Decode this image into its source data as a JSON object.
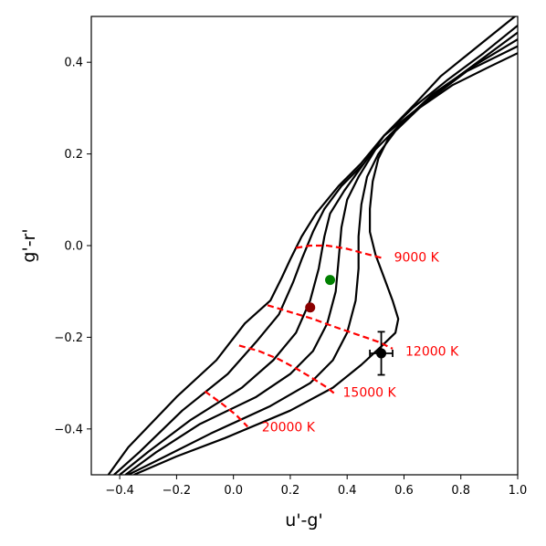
{
  "chart_data": {
    "type": "line",
    "xlabel": "u'-g'",
    "ylabel": "g'-r'",
    "xlim": [
      -0.5,
      1.0
    ],
    "ylim": [
      -0.5,
      0.5
    ],
    "grid": false,
    "xticks": [
      {
        "value": -0.4,
        "label": "−0.4"
      },
      {
        "value": -0.2,
        "label": "−0.2"
      },
      {
        "value": 0.0,
        "label": "0.0"
      },
      {
        "value": 0.2,
        "label": "0.2"
      },
      {
        "value": 0.4,
        "label": "0.4"
      },
      {
        "value": 0.6,
        "label": "0.6"
      },
      {
        "value": 0.8,
        "label": "0.8"
      },
      {
        "value": 1.0,
        "label": "1.0"
      }
    ],
    "yticks": [
      {
        "value": -0.4,
        "label": "−0.4"
      },
      {
        "value": -0.2,
        "label": "−0.2"
      },
      {
        "value": 0.0,
        "label": "0.0"
      },
      {
        "value": 0.2,
        "label": "0.2"
      },
      {
        "value": 0.4,
        "label": "0.4"
      }
    ],
    "model_tracks": {
      "color": "#000000",
      "series": [
        {
          "points": [
            [
              -0.44,
              -0.5
            ],
            [
              -0.37,
              -0.44
            ],
            [
              -0.2,
              -0.33
            ],
            [
              -0.06,
              -0.25
            ],
            [
              0.04,
              -0.17
            ],
            [
              0.13,
              -0.12
            ],
            [
              0.17,
              -0.07
            ],
            [
              0.2,
              -0.03
            ],
            [
              0.24,
              0.02
            ],
            [
              0.29,
              0.07
            ],
            [
              0.37,
              0.13
            ],
            [
              0.45,
              0.18
            ],
            [
              0.53,
              0.24
            ],
            [
              0.64,
              0.31
            ],
            [
              0.73,
              0.37
            ],
            [
              0.85,
              0.43
            ],
            [
              0.97,
              0.49
            ],
            [
              1.0,
              0.505
            ]
          ]
        },
        {
          "points": [
            [
              -0.42,
              -0.5
            ],
            [
              -0.33,
              -0.45
            ],
            [
              -0.18,
              -0.36
            ],
            [
              -0.02,
              -0.28
            ],
            [
              0.08,
              -0.21
            ],
            [
              0.16,
              -0.15
            ],
            [
              0.21,
              -0.08
            ],
            [
              0.24,
              -0.03
            ],
            [
              0.28,
              0.03
            ],
            [
              0.32,
              0.08
            ],
            [
              0.38,
              0.13
            ],
            [
              0.46,
              0.18
            ],
            [
              0.53,
              0.24
            ],
            [
              0.63,
              0.3
            ],
            [
              0.75,
              0.36
            ],
            [
              0.88,
              0.42
            ],
            [
              1.0,
              0.48
            ]
          ]
        },
        {
          "points": [
            [
              -0.4,
              -0.5
            ],
            [
              -0.3,
              -0.45
            ],
            [
              -0.15,
              -0.38
            ],
            [
              0.03,
              -0.31
            ],
            [
              0.14,
              -0.25
            ],
            [
              0.22,
              -0.19
            ],
            [
              0.27,
              -0.12
            ],
            [
              0.3,
              -0.05
            ],
            [
              0.32,
              0.02
            ],
            [
              0.34,
              0.07
            ],
            [
              0.39,
              0.12
            ],
            [
              0.46,
              0.18
            ],
            [
              0.53,
              0.24
            ],
            [
              0.63,
              0.29
            ],
            [
              0.75,
              0.35
            ],
            [
              0.88,
              0.41
            ],
            [
              1.0,
              0.465
            ]
          ]
        },
        {
          "points": [
            [
              -0.38,
              -0.5
            ],
            [
              -0.27,
              -0.45
            ],
            [
              -0.12,
              -0.39
            ],
            [
              0.08,
              -0.33
            ],
            [
              0.2,
              -0.28
            ],
            [
              0.28,
              -0.23
            ],
            [
              0.33,
              -0.17
            ],
            [
              0.36,
              -0.1
            ],
            [
              0.37,
              -0.03
            ],
            [
              0.38,
              0.04
            ],
            [
              0.4,
              0.1
            ],
            [
              0.44,
              0.15
            ],
            [
              0.5,
              0.21
            ],
            [
              0.58,
              0.26
            ],
            [
              0.7,
              0.33
            ],
            [
              0.84,
              0.39
            ],
            [
              1.0,
              0.45
            ]
          ]
        },
        {
          "points": [
            [
              -0.37,
              -0.5
            ],
            [
              -0.24,
              -0.46
            ],
            [
              -0.08,
              -0.41
            ],
            [
              0.13,
              -0.35
            ],
            [
              0.27,
              -0.3
            ],
            [
              0.35,
              -0.25
            ],
            [
              0.4,
              -0.19
            ],
            [
              0.43,
              -0.12
            ],
            [
              0.44,
              -0.05
            ],
            [
              0.44,
              0.02
            ],
            [
              0.45,
              0.09
            ],
            [
              0.47,
              0.15
            ],
            [
              0.51,
              0.2
            ],
            [
              0.57,
              0.25
            ],
            [
              0.67,
              0.31
            ],
            [
              0.82,
              0.38
            ],
            [
              1.0,
              0.435
            ]
          ]
        },
        {
          "points": [
            [
              -0.35,
              -0.5
            ],
            [
              -0.2,
              -0.46
            ],
            [
              -0.03,
              -0.42
            ],
            [
              0.2,
              -0.36
            ],
            [
              0.35,
              -0.31
            ],
            [
              0.45,
              -0.26
            ],
            [
              0.52,
              -0.22
            ],
            [
              0.57,
              -0.19
            ],
            [
              0.58,
              -0.16
            ],
            [
              0.56,
              -0.12
            ],
            [
              0.53,
              -0.07
            ],
            [
              0.5,
              -0.02
            ],
            [
              0.48,
              0.03
            ],
            [
              0.48,
              0.08
            ],
            [
              0.49,
              0.14
            ],
            [
              0.51,
              0.19
            ],
            [
              0.55,
              0.24
            ],
            [
              0.63,
              0.29
            ],
            [
              0.77,
              0.35
            ],
            [
              0.9,
              0.39
            ],
            [
              1.0,
              0.42
            ]
          ]
        }
      ]
    },
    "isotherms": [
      {
        "label": "9000 K",
        "label_at": [
          0.565,
          -0.025
        ],
        "points": [
          [
            0.22,
            -0.005
          ],
          [
            0.27,
            0.0
          ],
          [
            0.33,
            0.0
          ],
          [
            0.4,
            -0.007
          ],
          [
            0.46,
            -0.017
          ],
          [
            0.53,
            -0.028
          ]
        ]
      },
      {
        "label": "12000 K",
        "label_at": [
          0.605,
          -0.23
        ],
        "points": [
          [
            0.12,
            -0.13
          ],
          [
            0.2,
            -0.145
          ],
          [
            0.28,
            -0.16
          ],
          [
            0.36,
            -0.178
          ],
          [
            0.44,
            -0.195
          ],
          [
            0.51,
            -0.21
          ],
          [
            0.56,
            -0.225
          ]
        ]
      },
      {
        "label": "15000 K",
        "label_at": [
          0.385,
          -0.32
        ],
        "points": [
          [
            0.02,
            -0.218
          ],
          [
            0.09,
            -0.23
          ],
          [
            0.16,
            -0.248
          ],
          [
            0.22,
            -0.268
          ],
          [
            0.28,
            -0.29
          ],
          [
            0.33,
            -0.31
          ],
          [
            0.36,
            -0.325
          ]
        ]
      },
      {
        "label": "20000 K",
        "label_at": [
          0.1,
          -0.395
        ],
        "points": [
          [
            -0.1,
            -0.318
          ],
          [
            -0.04,
            -0.345
          ],
          [
            0.01,
            -0.37
          ],
          [
            0.05,
            -0.395
          ]
        ]
      }
    ],
    "markers": [
      {
        "color": "#008000",
        "x": 0.34,
        "y": -0.075
      },
      {
        "color": "#8b0000",
        "x": 0.27,
        "y": -0.135
      },
      {
        "color": "#000000",
        "x": 0.52,
        "y": -0.235,
        "xerr": 0.04,
        "yerr": 0.047
      }
    ]
  }
}
